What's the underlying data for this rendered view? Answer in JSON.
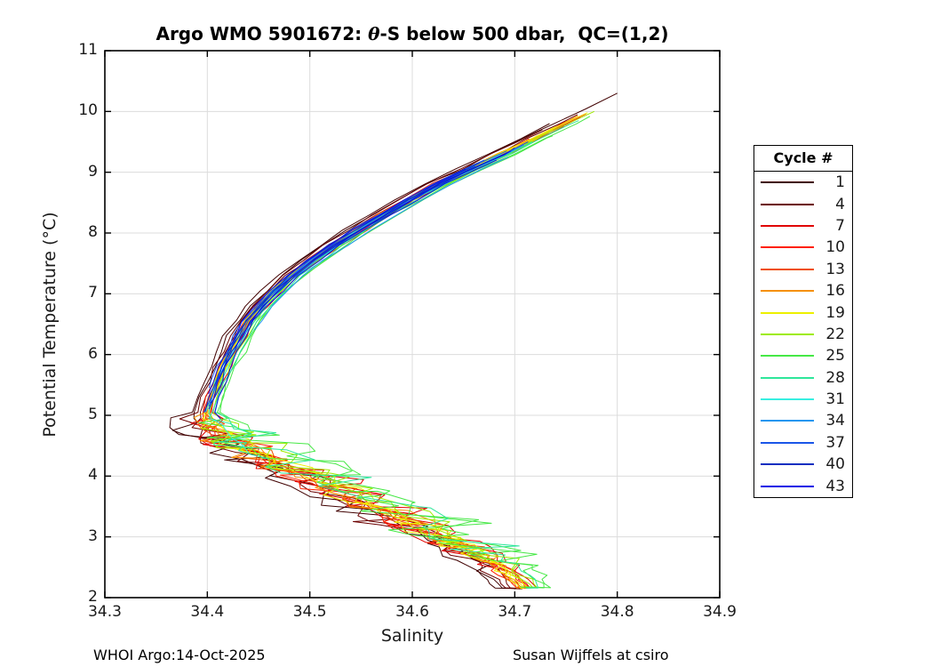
{
  "title": {
    "prefix": "Argo WMO 5901672: ",
    "theta": "θ",
    "suffix": "-S below 500 dbar,  QC=(1,2)"
  },
  "axes": {
    "xlabel": "Salinity",
    "ylabel": "Potential Temperature (°C)",
    "xlim": [
      34.3,
      34.9
    ],
    "ylim": [
      2,
      11
    ],
    "xticks": [
      "34.3",
      "34.4",
      "34.5",
      "34.6",
      "34.7",
      "34.8",
      "34.9"
    ],
    "yticks": [
      "2",
      "3",
      "4",
      "5",
      "6",
      "7",
      "8",
      "9",
      "10",
      "11"
    ]
  },
  "legend": {
    "title": "Cycle #",
    "position": "right-outside"
  },
  "footer": {
    "left": "WHOI Argo:14-Oct-2025",
    "right": "Susan Wijffels at csiro"
  },
  "style": {
    "grid_color": "#dcdcdc",
    "axis_color": "#000000",
    "text_color": "#1a1a1a",
    "background": "#ffffff"
  },
  "chart_data": {
    "type": "line",
    "title": "Argo WMO 5901672: θ-S below 500 dbar,  QC=(1,2)",
    "xlabel": "Salinity",
    "ylabel": "Potential Temperature (°C)",
    "xlim": [
      34.3,
      34.9
    ],
    "ylim": [
      2,
      11
    ],
    "grid": true,
    "legend_position": "right-outside",
    "description": "Theta-S profile curves for Argo float cycles; all cycles follow a tight upper arc from (34.81,10.3) down to a salinity-minimum bend near (34.40,5.0); early/mid cycles (warm and green colors) continue through a noisy tangle that descends to a convergence point near (34.71,2.16); late cycles (blue colors) stop near the bend.",
    "backbones": {
      "upper": [
        [
          10.3,
          34.81
        ],
        [
          10.05,
          34.78
        ],
        [
          9.8,
          34.748
        ],
        [
          9.55,
          34.718
        ],
        [
          9.3,
          34.688
        ],
        [
          9.05,
          34.656
        ],
        [
          8.8,
          34.625
        ],
        [
          8.55,
          34.597
        ],
        [
          8.3,
          34.571
        ],
        [
          8.05,
          34.547
        ],
        [
          7.8,
          34.524
        ],
        [
          7.55,
          34.503
        ],
        [
          7.3,
          34.483
        ],
        [
          7.05,
          34.466
        ],
        [
          6.8,
          34.452
        ],
        [
          6.55,
          34.44
        ],
        [
          6.3,
          34.431
        ],
        [
          6.05,
          34.423
        ],
        [
          5.8,
          34.416
        ],
        [
          5.55,
          34.41
        ],
        [
          5.3,
          34.404
        ],
        [
          5.05,
          34.399
        ]
      ],
      "lower": [
        [
          4.95,
          34.399
        ],
        [
          4.78,
          34.404
        ],
        [
          4.6,
          34.42
        ],
        [
          4.42,
          34.442
        ],
        [
          4.24,
          34.466
        ],
        [
          4.06,
          34.492
        ],
        [
          3.88,
          34.515
        ],
        [
          3.7,
          34.538
        ],
        [
          3.52,
          34.56
        ],
        [
          3.34,
          34.584
        ],
        [
          3.16,
          34.608
        ],
        [
          2.98,
          34.632
        ],
        [
          2.8,
          34.654
        ],
        [
          2.62,
          34.674
        ],
        [
          2.45,
          34.69
        ],
        [
          2.3,
          34.701
        ],
        [
          2.16,
          34.709
        ]
      ]
    },
    "convergence_point": [
      34.708,
      2.16
    ],
    "bend_point": [
      34.399,
      5.0
    ],
    "series": [
      {
        "name": "1",
        "cycle": 1,
        "color": "#400000",
        "lines": [
          {
            "tip": 10.3,
            "end": "full",
            "bias": -0.01,
            "amp": 0.03
          },
          {
            "tip": 9.8,
            "end": "full",
            "bias": -0.014,
            "amp": 0.026
          }
        ]
      },
      {
        "name": "4",
        "cycle": 4,
        "color": "#6B0000",
        "lines": [
          {
            "tip": 9.95,
            "end": "full",
            "bias": -0.006,
            "amp": 0.026
          },
          {
            "tip": 9.7,
            "end": "full",
            "bias": -0.009,
            "amp": 0.03
          }
        ]
      },
      {
        "name": "7",
        "cycle": 7,
        "color": "#E00000",
        "lines": [
          {
            "tip": 9.9,
            "end": "full",
            "bias": 0.003,
            "amp": 0.036
          },
          {
            "tip": 9.6,
            "end": "full",
            "bias": -0.002,
            "amp": 0.03
          },
          {
            "tip": 9.75,
            "end": "full",
            "bias": 0.006,
            "amp": 0.026
          }
        ]
      },
      {
        "name": "10",
        "cycle": 10,
        "color": "#FF2000",
        "lines": [
          {
            "tip": 9.96,
            "end": "full",
            "bias": 0.001,
            "amp": 0.03
          },
          {
            "tip": 9.55,
            "end": "full",
            "bias": -0.004,
            "amp": 0.026
          }
        ]
      },
      {
        "name": "13",
        "cycle": 13,
        "color": "#F04E00",
        "lines": [
          {
            "tip": 9.88,
            "end": "full",
            "bias": -0.001,
            "amp": 0.024
          },
          {
            "tip": 9.65,
            "end": "full",
            "bias": 0.003,
            "amp": 0.028
          }
        ]
      },
      {
        "name": "16",
        "cycle": 16,
        "color": "#F59000",
        "lines": [
          {
            "tip": 9.93,
            "end": "full",
            "bias": -0.003,
            "amp": 0.021
          },
          {
            "tip": 9.7,
            "end": "full",
            "bias": 0.001,
            "amp": 0.024
          }
        ]
      },
      {
        "name": "19",
        "cycle": 19,
        "color": "#EDF000",
        "lines": [
          {
            "tip": 9.98,
            "end": "full",
            "bias": 0.0,
            "amp": 0.02
          },
          {
            "tip": 9.75,
            "end": "full",
            "bias": -0.002,
            "amp": 0.022
          },
          {
            "tip": 9.6,
            "end": "full",
            "bias": 0.002,
            "amp": 0.018
          }
        ]
      },
      {
        "name": "22",
        "cycle": 22,
        "color": "#9EEB00",
        "lines": [
          {
            "tip": 10.0,
            "end": "full",
            "bias": 0.004,
            "amp": 0.028
          },
          {
            "tip": 9.7,
            "end": "full",
            "bias": 0.007,
            "amp": 0.032
          }
        ]
      },
      {
        "name": "25",
        "cycle": 25,
        "color": "#46E846",
        "lines": [
          {
            "tip": 9.92,
            "end": "full",
            "bias": 0.01,
            "amp": 0.055
          },
          {
            "tip": 9.6,
            "end": "full",
            "bias": 0.013,
            "amp": 0.045
          }
        ]
      },
      {
        "name": "28",
        "cycle": 28,
        "color": "#2EE69B",
        "lines": [
          {
            "tip": 9.85,
            "end": "full",
            "bias": 0.008,
            "amp": 0.045
          },
          {
            "tip": 9.5,
            "end": 4.2,
            "bias": 0.005,
            "amp": 0.03
          }
        ]
      },
      {
        "name": "31",
        "cycle": 31,
        "color": "#38EFE1",
        "lines": [
          {
            "tip": 9.4,
            "end": 4.35,
            "bias": 0.002,
            "amp": 0.02
          },
          {
            "tip": 9.3,
            "end": 5.0,
            "bias": -0.001,
            "amp": 0
          }
        ]
      },
      {
        "name": "34",
        "cycle": 34,
        "color": "#2196F0",
        "lines": [
          {
            "tip": 9.25,
            "end": 6.4,
            "bias": 0.012,
            "amp": 0
          },
          {
            "tip": 9.45,
            "end": 5.3,
            "bias": 0.003,
            "amp": 0
          },
          {
            "tip": 9.1,
            "end": 5.55,
            "bias": -0.001,
            "amp": 0
          }
        ]
      },
      {
        "name": "37",
        "cycle": 37,
        "color": "#1A56E8",
        "lines": [
          {
            "tip": 9.35,
            "end": 5.05,
            "bias": -0.002,
            "amp": 0
          },
          {
            "tip": 9.2,
            "end": 5.45,
            "bias": -0.005,
            "amp": 0
          },
          {
            "tip": 9.5,
            "end": 5.15,
            "bias": 0.001,
            "amp": 0
          }
        ]
      },
      {
        "name": "40",
        "cycle": 40,
        "color": "#0A2EC0",
        "lines": [
          {
            "tip": 9.3,
            "end": 5.2,
            "bias": 0.003,
            "amp": 0
          },
          {
            "tip": 9.15,
            "end": 5.0,
            "bias": -0.003,
            "amp": 0
          },
          {
            "tip": 9.4,
            "end": 5.6,
            "bias": 0.0,
            "amp": 0
          }
        ]
      },
      {
        "name": "43",
        "cycle": 43,
        "color": "#0D0DE6",
        "lines": [
          {
            "tip": 9.2,
            "end": 4.95,
            "bias": 0.007,
            "amp": 0
          },
          {
            "tip": 9.35,
            "end": 5.1,
            "bias": 0.002,
            "amp": 0
          },
          {
            "tip": 9.05,
            "end": 5.35,
            "bias": -0.004,
            "amp": 0
          }
        ]
      }
    ]
  }
}
